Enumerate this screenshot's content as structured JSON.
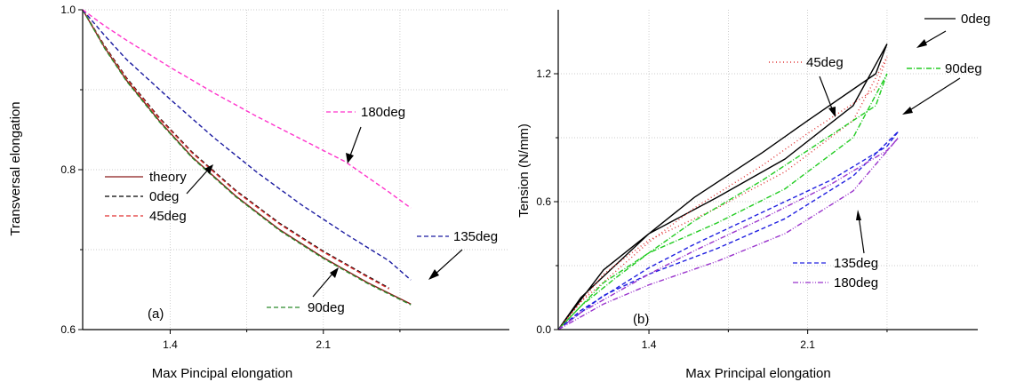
{
  "chart_data": [
    {
      "type": "line",
      "panel_label": "(a)",
      "xlabel": "Max Pincipal elongation",
      "ylabel": "Transversal elongation",
      "xlim": [
        1.0,
        2.95
      ],
      "ylim": [
        0.6,
        1.0
      ],
      "xticks": [
        1.4,
        2.1
      ],
      "yticks": [
        0.6,
        0.8,
        1.0
      ],
      "ytick_labels": [
        "0.6",
        "0.8",
        "1.0"
      ],
      "grid": true,
      "legend_position": "center-left",
      "series": [
        {
          "name": "theory",
          "color": "#8b1a1a",
          "style": "solid",
          "x": [
            1.0,
            1.1,
            1.2,
            1.35,
            1.5,
            1.7,
            1.9,
            2.1,
            2.3,
            2.5
          ],
          "y": [
            1.0,
            0.953,
            0.912,
            0.861,
            0.816,
            0.767,
            0.725,
            0.69,
            0.659,
            0.632
          ]
        },
        {
          "name": "0deg",
          "color": "#000000",
          "style": "dashed",
          "x": [
            1.0,
            1.1,
            1.2,
            1.35,
            1.5,
            1.7,
            1.9,
            2.1,
            2.3,
            2.4
          ],
          "y": [
            1.0,
            0.955,
            0.915,
            0.865,
            0.822,
            0.774,
            0.733,
            0.698,
            0.667,
            0.652
          ]
        },
        {
          "name": "45deg",
          "color": "#e03030",
          "style": "dashed",
          "x": [
            1.0,
            1.1,
            1.2,
            1.35,
            1.5,
            1.7,
            1.9,
            2.1,
            2.3,
            2.4
          ],
          "y": [
            1.0,
            0.954,
            0.914,
            0.864,
            0.821,
            0.773,
            0.732,
            0.697,
            0.666,
            0.651
          ]
        },
        {
          "name": "90deg",
          "color": "#2a8a2a",
          "style": "dashed",
          "x": [
            1.0,
            1.1,
            1.2,
            1.35,
            1.5,
            1.7,
            1.9,
            2.1,
            2.3,
            2.5
          ],
          "y": [
            1.0,
            0.952,
            0.911,
            0.86,
            0.815,
            0.766,
            0.724,
            0.689,
            0.658,
            0.631
          ]
        },
        {
          "name": "135deg",
          "color": "#1a1aa0",
          "style": "dashed",
          "x": [
            1.0,
            1.1,
            1.2,
            1.4,
            1.6,
            1.8,
            2.0,
            2.2,
            2.4,
            2.5
          ],
          "y": [
            1.0,
            0.968,
            0.938,
            0.888,
            0.84,
            0.796,
            0.756,
            0.72,
            0.686,
            0.662
          ]
        },
        {
          "name": "180deg",
          "color": "#ff33cc",
          "style": "dashed",
          "x": [
            1.0,
            1.1,
            1.2,
            1.4,
            1.6,
            1.8,
            2.0,
            2.2,
            2.4,
            2.5
          ],
          "y": [
            1.0,
            0.98,
            0.962,
            0.928,
            0.896,
            0.866,
            0.838,
            0.81,
            0.772,
            0.752
          ]
        }
      ],
      "annotations": [
        "180deg",
        "135deg",
        "90deg"
      ]
    },
    {
      "type": "line",
      "panel_label": "(b)",
      "xlabel": "Max Principal elongation",
      "ylabel": "Tension (N/mm)",
      "xlim": [
        1.0,
        2.85
      ],
      "ylim": [
        0.0,
        1.5
      ],
      "xticks": [
        1.4,
        2.1
      ],
      "yticks": [
        0.0,
        0.6,
        1.2
      ],
      "ytick_labels": [
        "0.0",
        "0.6",
        "1.2"
      ],
      "grid": true,
      "legend_position": "none",
      "series": [
        {
          "name": "0deg",
          "color": "#000000",
          "style": "solid",
          "x": [
            1.0,
            1.1,
            1.25,
            1.4,
            1.6,
            1.9,
            2.1,
            2.4,
            2.45,
            2.3,
            2.0,
            1.7,
            1.4,
            1.2,
            1.0
          ],
          "y": [
            0.0,
            0.15,
            0.3,
            0.45,
            0.62,
            0.83,
            0.98,
            1.2,
            1.34,
            1.05,
            0.8,
            0.62,
            0.45,
            0.28,
            0.0
          ]
        },
        {
          "name": "45deg",
          "color": "#e03030",
          "style": "dotted",
          "x": [
            1.0,
            1.1,
            1.25,
            1.4,
            1.6,
            1.9,
            2.1,
            2.4,
            2.45,
            2.3,
            2.0,
            1.7,
            1.4,
            1.2,
            1.0
          ],
          "y": [
            0.0,
            0.13,
            0.27,
            0.41,
            0.57,
            0.77,
            0.92,
            1.13,
            1.28,
            0.98,
            0.74,
            0.57,
            0.42,
            0.26,
            0.0
          ]
        },
        {
          "name": "90deg",
          "color": "#22cc22",
          "style": "dashdot",
          "x": [
            1.0,
            1.1,
            1.25,
            1.4,
            1.6,
            1.9,
            2.1,
            2.4,
            2.45,
            2.3,
            2.0,
            1.7,
            1.4,
            1.2,
            1.0
          ],
          "y": [
            0.0,
            0.11,
            0.24,
            0.36,
            0.51,
            0.7,
            0.84,
            1.05,
            1.2,
            0.9,
            0.66,
            0.5,
            0.36,
            0.22,
            0.0
          ]
        },
        {
          "name": "135deg",
          "color": "#2020e0",
          "style": "dashed",
          "x": [
            1.0,
            1.1,
            1.25,
            1.4,
            1.6,
            1.9,
            2.2,
            2.45,
            2.5,
            2.3,
            2.0,
            1.7,
            1.4,
            1.2,
            1.0
          ],
          "y": [
            0.0,
            0.09,
            0.19,
            0.29,
            0.4,
            0.55,
            0.7,
            0.86,
            0.93,
            0.72,
            0.52,
            0.38,
            0.26,
            0.16,
            0.0
          ]
        },
        {
          "name": "180deg",
          "color": "#9933cc",
          "style": "dashdotdot",
          "x": [
            1.0,
            1.1,
            1.25,
            1.4,
            1.6,
            1.9,
            2.2,
            2.45,
            2.5,
            2.3,
            2.0,
            1.7,
            1.4,
            1.2,
            1.0
          ],
          "y": [
            0.0,
            0.08,
            0.17,
            0.26,
            0.37,
            0.52,
            0.68,
            0.84,
            0.9,
            0.65,
            0.45,
            0.32,
            0.21,
            0.12,
            0.0
          ]
        }
      ],
      "annotations": [
        "0deg",
        "45deg",
        "90deg",
        "135deg",
        "180deg"
      ]
    }
  ]
}
